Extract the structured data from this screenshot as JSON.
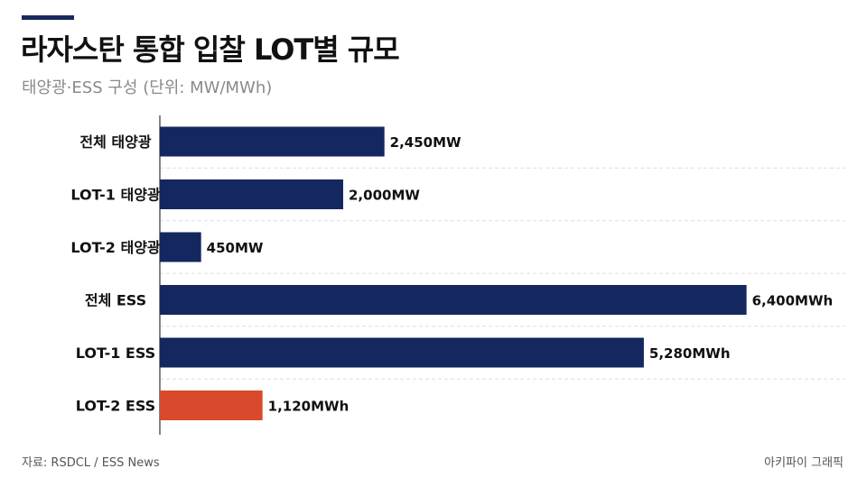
{
  "header": {
    "title": "라자스탄 통합 입찰 LOT별 규모",
    "subtitle": "태양광·ESS 구성 (단위: MW/MWh)"
  },
  "footer": {
    "source": "자료: RSDCL / ESS News",
    "credit": "아키파이 그래픽"
  },
  "colors": {
    "accent": "#1a2a5e",
    "bar_default": "#14275f",
    "bar_highlight": "#d9492b",
    "grid": "#dddddd",
    "axis": "#333333"
  },
  "chart_data": {
    "type": "bar",
    "orientation": "horizontal",
    "title": "라자스탄 통합 입찰 LOT별 규모",
    "subtitle": "태양광·ESS 구성 (단위: MW/MWh)",
    "categories": [
      "전체 태양광",
      "LOT-1 태양광",
      "LOT-2 태양광",
      "전체 ESS",
      "LOT-1 ESS",
      "LOT-2 ESS"
    ],
    "values": [
      2450,
      2000,
      450,
      6400,
      5280,
      1120
    ],
    "data_labels": [
      "2,450MW",
      "2,000MW",
      "450MW",
      "6,400MWh",
      "5,280MWh",
      "1,120MWh"
    ],
    "highlight_index": 5,
    "grid": true,
    "legend": "none"
  }
}
